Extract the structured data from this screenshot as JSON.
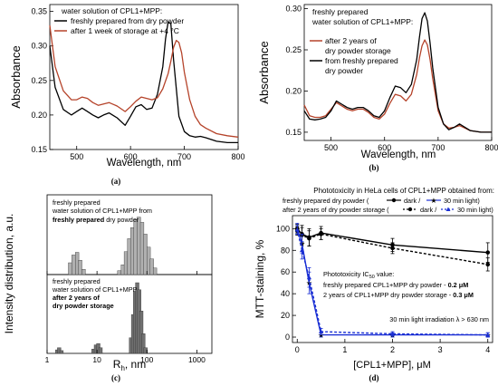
{
  "chart_data": [
    {
      "type": "line",
      "panel_label": "(a)",
      "xlabel": "Wavelength, nm",
      "ylabel": "Absorbance",
      "xlim": [
        450,
        800
      ],
      "ylim": [
        0.15,
        0.36
      ],
      "xticks": [
        500,
        600,
        700,
        800
      ],
      "yticks": [
        0.15,
        0.2,
        0.25,
        0.3,
        0.35
      ],
      "ytick_labels": [
        "0.15",
        "0.20",
        "0.25",
        "0.30",
        "0.35"
      ],
      "legend_title": "water solution of CPL1+MPP:",
      "legend_placement": "top-left",
      "series": [
        {
          "name": "freshly prepared from dry powder",
          "color": "#000000",
          "x": [
            450,
            460,
            475,
            490,
            500,
            510,
            520,
            530,
            540,
            550,
            560,
            575,
            590,
            600,
            610,
            620,
            630,
            640,
            650,
            660,
            665,
            670,
            675,
            680,
            690,
            700,
            710,
            720,
            730,
            740,
            760,
            780,
            800
          ],
          "y": [
            0.3,
            0.24,
            0.208,
            0.2,
            0.205,
            0.21,
            0.205,
            0.2,
            0.196,
            0.2,
            0.203,
            0.196,
            0.185,
            0.198,
            0.212,
            0.215,
            0.208,
            0.21,
            0.23,
            0.27,
            0.31,
            0.335,
            0.332,
            0.28,
            0.198,
            0.176,
            0.17,
            0.168,
            0.169,
            0.167,
            0.162,
            0.16,
            0.16
          ]
        },
        {
          "name": "after 1 week of storage at +4 °C",
          "color": "#b5432a",
          "x": [
            450,
            460,
            475,
            490,
            500,
            510,
            520,
            530,
            540,
            550,
            560,
            575,
            590,
            600,
            610,
            620,
            630,
            640,
            650,
            660,
            670,
            675,
            680,
            685,
            690,
            695,
            700,
            710,
            720,
            730,
            740,
            760,
            780,
            800
          ],
          "y": [
            0.33,
            0.27,
            0.235,
            0.222,
            0.222,
            0.226,
            0.224,
            0.218,
            0.214,
            0.216,
            0.218,
            0.213,
            0.205,
            0.212,
            0.22,
            0.226,
            0.224,
            0.222,
            0.225,
            0.238,
            0.26,
            0.278,
            0.298,
            0.308,
            0.305,
            0.29,
            0.262,
            0.222,
            0.198,
            0.186,
            0.181,
            0.173,
            0.17,
            0.168
          ]
        }
      ]
    },
    {
      "type": "line",
      "panel_label": "(b)",
      "xlabel": "Wavelength, nm",
      "ylabel": "Absorbance",
      "xlim": [
        450,
        800
      ],
      "ylim": [
        0.14,
        0.305
      ],
      "xticks": [
        500,
        600,
        700,
        800
      ],
      "yticks": [
        0.15,
        0.2,
        0.25,
        0.3
      ],
      "ytick_labels": [
        "0.15",
        "0.20",
        "0.25",
        "0.30"
      ],
      "legend_title": "freshly prepared water solution of CPL1+MPP:",
      "legend_placement": "top-left",
      "series": [
        {
          "name": "after 2 years of dry powder storage",
          "color": "#b5432a",
          "x": [
            450,
            460,
            470,
            480,
            490,
            500,
            510,
            520,
            530,
            540,
            550,
            560,
            570,
            580,
            590,
            600,
            610,
            620,
            630,
            640,
            650,
            660,
            665,
            670,
            675,
            680,
            685,
            690,
            700,
            710,
            720,
            730,
            740,
            760,
            780,
            800
          ],
          "y": [
            0.183,
            0.17,
            0.168,
            0.168,
            0.17,
            0.178,
            0.186,
            0.182,
            0.178,
            0.176,
            0.178,
            0.178,
            0.174,
            0.168,
            0.166,
            0.172,
            0.185,
            0.196,
            0.194,
            0.188,
            0.196,
            0.22,
            0.24,
            0.255,
            0.262,
            0.256,
            0.238,
            0.215,
            0.176,
            0.16,
            0.155,
            0.156,
            0.158,
            0.152,
            0.15,
            0.15
          ]
        },
        {
          "name": "from freshly prepared dry powder",
          "color": "#000000",
          "x": [
            450,
            460,
            470,
            480,
            490,
            500,
            510,
            520,
            530,
            540,
            550,
            560,
            570,
            580,
            590,
            600,
            610,
            620,
            630,
            640,
            650,
            660,
            665,
            670,
            675,
            680,
            685,
            690,
            700,
            710,
            720,
            730,
            740,
            760,
            780,
            800
          ],
          "y": [
            0.176,
            0.166,
            0.165,
            0.166,
            0.168,
            0.176,
            0.188,
            0.184,
            0.18,
            0.178,
            0.18,
            0.18,
            0.176,
            0.17,
            0.168,
            0.176,
            0.192,
            0.206,
            0.204,
            0.198,
            0.208,
            0.238,
            0.265,
            0.288,
            0.295,
            0.285,
            0.258,
            0.228,
            0.18,
            0.16,
            0.153,
            0.156,
            0.16,
            0.152,
            0.15,
            0.15
          ]
        }
      ]
    },
    {
      "type": "bar",
      "panel_label": "(c)",
      "xlabel": "Rₕ, nm",
      "xlabel_main": "R",
      "xlabel_sub": "h",
      "xlabel_unit": ", nm",
      "ylabel": "Intensity distribution, a.u.",
      "x_scale": "log",
      "xlim": [
        1,
        2000
      ],
      "xticks": [
        1,
        10,
        100,
        1000
      ],
      "subpanels": [
        {
          "annotation_lines": [
            "freshly prepared",
            "water solution of CPL1+MPP from"
          ],
          "annotation_bold": "freshly prepared",
          "annotation_tail": " dry powder",
          "color": "#b0b0b0",
          "bins": [
            {
              "x": 2.9,
              "v": 0.18
            },
            {
              "x": 3.4,
              "v": 0.3
            },
            {
              "x": 4.0,
              "v": 0.34
            },
            {
              "x": 4.6,
              "v": 0.22
            },
            {
              "x": 5.4,
              "v": 0.08
            },
            {
              "x": 28,
              "v": 0.06
            },
            {
              "x": 33,
              "v": 0.15
            },
            {
              "x": 38,
              "v": 0.35
            },
            {
              "x": 44,
              "v": 0.55
            },
            {
              "x": 51,
              "v": 0.72
            },
            {
              "x": 59,
              "v": 0.84
            },
            {
              "x": 69,
              "v": 0.88
            },
            {
              "x": 80,
              "v": 0.8
            },
            {
              "x": 93,
              "v": 0.62
            },
            {
              "x": 108,
              "v": 0.42
            },
            {
              "x": 125,
              "v": 0.24
            },
            {
              "x": 145,
              "v": 0.1
            }
          ]
        },
        {
          "annotation_lines": [
            "freshly prepared",
            "water solution of CPL1+MPP"
          ],
          "annotation_bold_lines": [
            "after 2 years of",
            "dry powder storage"
          ],
          "color": "#707070",
          "bins": [
            {
              "x": 1.6,
              "v": 0.05
            },
            {
              "x": 1.75,
              "v": 0.08
            },
            {
              "x": 1.95,
              "v": 0.04
            },
            {
              "x": 8.5,
              "v": 0.06
            },
            {
              "x": 9.5,
              "v": 0.12
            },
            {
              "x": 10.6,
              "v": 0.14
            },
            {
              "x": 11.8,
              "v": 0.08
            },
            {
              "x": 48,
              "v": 0.22
            },
            {
              "x": 53,
              "v": 0.55
            },
            {
              "x": 58,
              "v": 0.88
            },
            {
              "x": 64,
              "v": 1.0
            },
            {
              "x": 70,
              "v": 0.9
            },
            {
              "x": 77,
              "v": 0.6
            },
            {
              "x": 85,
              "v": 0.28
            },
            {
              "x": 94,
              "v": 0.08
            }
          ]
        }
      ]
    },
    {
      "type": "line",
      "panel_label": "(d)",
      "title": "Phototoxicity in HeLa cells of CPL1+MPP obtained from:",
      "xlabel": "[CPL1+MPP], μM",
      "ylabel": "MTT-staining, %",
      "xlim": [
        -0.1,
        4.1
      ],
      "ylim": [
        -5,
        112
      ],
      "xticks": [
        0,
        1,
        2,
        3,
        4
      ],
      "yticks": [
        0,
        20,
        40,
        60,
        80,
        100
      ],
      "legend": {
        "row1_label": "freshly prepared dry powder (",
        "row2_label": "after 2 years of dry powder storage (",
        "dark_label": "dark /",
        "light_label": "30 min light)",
        "light_label_b": "30 min light)"
      },
      "series": [
        {
          "name": "freshly prepared dry powder dark",
          "color": "#000000",
          "dash": false,
          "marker": "circle",
          "x": [
            0,
            0.1,
            0.25,
            0.5,
            2,
            4
          ],
          "y": [
            100,
            95,
            92,
            96,
            85,
            78
          ],
          "err": [
            4,
            8,
            8,
            6,
            6,
            9
          ]
        },
        {
          "name": "after 2 years dark",
          "color": "#000000",
          "dash": true,
          "marker": "circle",
          "x": [
            0,
            0.1,
            0.25,
            0.5,
            2,
            4
          ],
          "y": [
            98,
            94,
            91,
            95,
            82,
            67
          ],
          "err": [
            4,
            7,
            7,
            5,
            5,
            6
          ]
        },
        {
          "name": "freshly prepared dry powder 30 min light",
          "color": "#1a2fd4",
          "dash": false,
          "marker": "star",
          "x": [
            0,
            0.1,
            0.25,
            0.5,
            2,
            4
          ],
          "y": [
            100,
            86,
            50,
            2,
            2,
            2
          ],
          "err": [
            5,
            9,
            10,
            2,
            2,
            2
          ]
        },
        {
          "name": "after 2 years 30 min light",
          "color": "#1a2fd4",
          "dash": true,
          "marker": "triangle",
          "x": [
            0,
            0.1,
            0.25,
            0.5,
            2,
            4
          ],
          "y": [
            99,
            80,
            55,
            5,
            3,
            2
          ],
          "err": [
            4,
            8,
            9,
            3,
            2,
            2
          ]
        }
      ],
      "annotations": {
        "ic50_title": "Phototoxicity IC",
        "ic50_sub": "50",
        "ic50_tail": " value:",
        "fresh_text": "freshly prepared CPL1+MPP dry powder - ",
        "fresh_value": "0.2 μM",
        "stored_text": "2 years of CPL1+MPP dry powder storage - ",
        "stored_value": "0.3 μM",
        "irradiation": "30 min light irradiation λ > 630 nm"
      }
    }
  ]
}
